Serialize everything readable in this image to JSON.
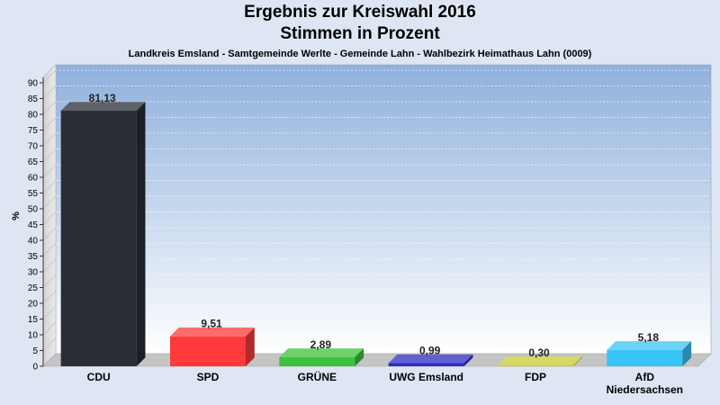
{
  "header": {
    "title_line1": "Ergebnis zur Kreiswahl 2016",
    "title_line2": "Stimmen in Prozent",
    "subtitle": "Landkreis Emsland - Samtgemeinde Werlte - Gemeinde Lahn - Wahlbezirk Heimathaus Lahn (0009)"
  },
  "chart_data": {
    "type": "bar",
    "title": "Ergebnis zur Kreiswahl 2016",
    "subtitle": "Stimmen in Prozent",
    "ylabel": "%",
    "xlabel": "",
    "ylim": [
      0,
      90
    ],
    "yticks": [
      0,
      5,
      10,
      15,
      20,
      25,
      30,
      35,
      40,
      45,
      50,
      55,
      60,
      65,
      70,
      75,
      80,
      85,
      90
    ],
    "grid": true,
    "categories": [
      [
        "CDU"
      ],
      [
        "SPD"
      ],
      [
        "GRÜNE"
      ],
      [
        "UWG Emsland"
      ],
      [
        "FDP"
      ],
      [
        "AfD",
        "Niedersachsen"
      ]
    ],
    "values": [
      81.13,
      9.51,
      2.89,
      0.99,
      0.3,
      5.18
    ],
    "value_labels": [
      "81,13",
      "9,51",
      "2,89",
      "0,99",
      "0,30",
      "5,18"
    ],
    "colors": [
      "#2a2d36",
      "#ff3a3a",
      "#3cc23c",
      "#2b2bc6",
      "#c9c930",
      "#38c4f4"
    ]
  }
}
